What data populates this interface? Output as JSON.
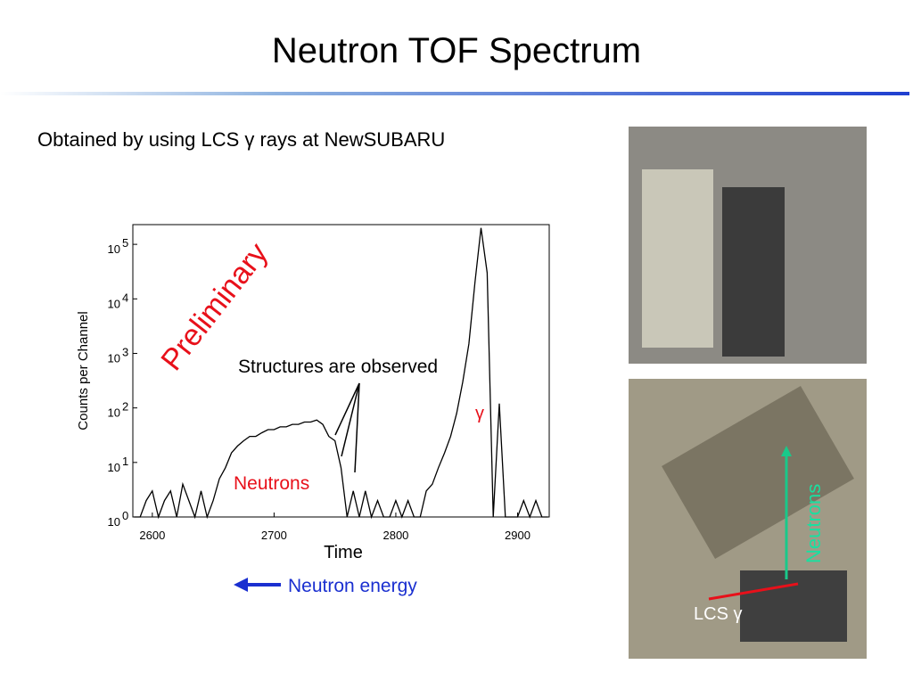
{
  "slide": {
    "title": "Neutron TOF Spectrum",
    "subtitle": "Obtained by using LCS γ rays at NewSUBARU",
    "arrow_label": "Neutron energy",
    "photo_labels": [
      "Neutrons",
      "LCS γ"
    ]
  },
  "chart_data": {
    "type": "line",
    "y_label": "Counts per Channel",
    "x_label": "Time",
    "log_y": true,
    "color": "#000000",
    "annotations": [
      "Preliminary",
      "Structures are observed",
      "γ",
      "Neutrons"
    ],
    "xlim": [
      2584,
      2926
    ],
    "xticks": [
      2600,
      2700,
      2800,
      2900
    ],
    "ylim": [
      1,
      230000
    ],
    "yticks": [
      {
        "value": 1,
        "label": "10",
        "exponent": "0"
      },
      {
        "value": 10,
        "label": "10",
        "exponent": "1"
      },
      {
        "value": 100,
        "label": "10",
        "exponent": "2"
      },
      {
        "value": 1000,
        "label": "10",
        "exponent": "3"
      },
      {
        "value": 10000,
        "label": "10",
        "exponent": "4"
      },
      {
        "value": 100000,
        "label": "10",
        "exponent": "5"
      }
    ],
    "x": [
      2585,
      2590,
      2595,
      2600,
      2605,
      2610,
      2615,
      2620,
      2625,
      2630,
      2635,
      2640,
      2645,
      2650,
      2655,
      2660,
      2665,
      2670,
      2675,
      2680,
      2685,
      2690,
      2695,
      2700,
      2705,
      2710,
      2715,
      2720,
      2725,
      2730,
      2735,
      2740,
      2745,
      2750,
      2755,
      2760,
      2765,
      2770,
      2775,
      2780,
      2785,
      2790,
      2795,
      2800,
      2805,
      2810,
      2815,
      2820,
      2825,
      2830,
      2835,
      2840,
      2845,
      2850,
      2855,
      2860,
      2865,
      2870,
      2875,
      2880,
      2885,
      2890,
      2895,
      2900,
      2905,
      2910,
      2915,
      2920,
      2925
    ],
    "values": [
      1,
      1,
      2,
      3,
      1,
      2,
      3,
      1,
      4,
      2,
      1,
      3,
      1,
      2,
      5,
      8,
      15,
      20,
      25,
      30,
      30,
      35,
      40,
      40,
      45,
      45,
      50,
      50,
      55,
      55,
      60,
      50,
      30,
      25,
      8,
      1,
      3,
      1,
      3,
      1,
      2,
      1,
      1,
      2,
      1,
      2,
      1,
      1,
      3,
      4,
      8,
      15,
      30,
      80,
      300,
      1500,
      20000,
      200000,
      30000,
      1,
      120,
      1,
      1,
      1,
      2,
      1,
      2,
      1,
      1
    ]
  }
}
